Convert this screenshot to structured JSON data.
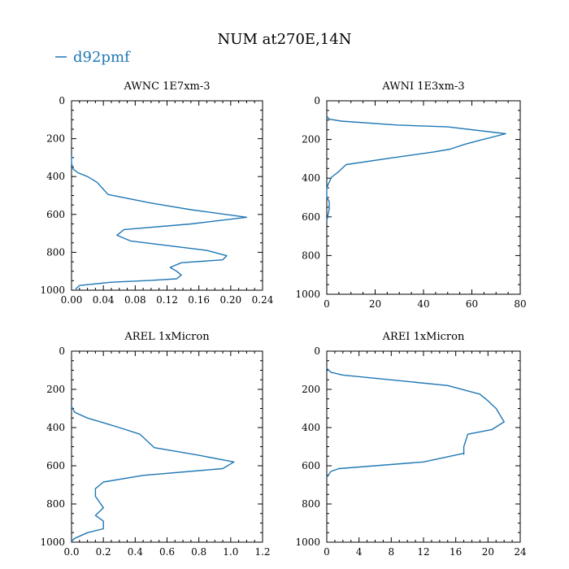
{
  "chart_data": {
    "title": "NUM at270E,14N",
    "legend": [
      {
        "name": "d92pmf",
        "color": "#1f77b4"
      }
    ],
    "panels": [
      {
        "type": "line",
        "title": "AWNC  1E7xm-3",
        "xlim": [
          0,
          0.24
        ],
        "ylim": [
          1000,
          0
        ],
        "xticks": [
          "0.00",
          "0.04",
          "0.08",
          "0.12",
          "0.16",
          "0.20",
          "0.24"
        ],
        "yticks": [
          "0",
          "200",
          "400",
          "600",
          "800",
          "1000"
        ],
        "series": [
          {
            "name": "d92pmf",
            "color": "#1f77b4",
            "x": [
              0,
              0,
              0.002,
              0.008,
              0.02,
              0.032,
              0.046,
              0.1,
              0.15,
              0.22,
              0.15,
              0.066,
              0.057,
              0.074,
              0.17,
              0.195,
              0.19,
              0.138,
              0.124,
              0.132,
              0.138,
              0.132,
              0.1,
              0.05,
              0.01,
              0.005
            ],
            "y": [
              290,
              330,
              360,
              380,
              400,
              430,
              495,
              540,
              575,
              615,
              650,
              680,
              710,
              740,
              790,
              818,
              840,
              855,
              880,
              900,
              920,
              940,
              948,
              958,
              975,
              995
            ]
          }
        ]
      },
      {
        "type": "line",
        "title": "AWNI  1E3xm-3",
        "xlim": [
          0,
          80
        ],
        "ylim": [
          1000,
          0
        ],
        "xticks": [
          "0",
          "20",
          "40",
          "60",
          "80"
        ],
        "yticks": [
          "0",
          "200",
          "400",
          "600",
          "800",
          "1000"
        ],
        "series": [
          {
            "name": "d92pmf",
            "color": "#1f77b4",
            "x": [
              0,
              1,
              6,
              29,
              50,
              74,
              63,
              57,
              51,
              44,
              27,
              8,
              5,
              2,
              1,
              0,
              0,
              1,
              1,
              0
            ],
            "y": [
              80,
              95,
              105,
              125,
              135,
              170,
              205,
              225,
              250,
              265,
              295,
              330,
              365,
              395,
              420,
              450,
              500,
              520,
              560,
              620
            ]
          }
        ]
      },
      {
        "type": "line",
        "title": "AREL  1xMicron",
        "xlim": [
          0,
          1.2
        ],
        "ylim": [
          1000,
          0
        ],
        "xticks": [
          "0.0",
          "0.2",
          "0.4",
          "0.6",
          "0.8",
          "1.0",
          "1.2"
        ],
        "yticks": [
          "0",
          "200",
          "400",
          "600",
          "800",
          "1000"
        ],
        "series": [
          {
            "name": "d92pmf",
            "color": "#1f77b4",
            "x": [
              0,
              0.02,
              0.1,
              0.2,
              0.3,
              0.43,
              0.52,
              0.8,
              1.02,
              0.95,
              0.45,
              0.2,
              0.15,
              0.15,
              0.2,
              0.15,
              0.2,
              0.2,
              0.1,
              0.02,
              0
            ],
            "y": [
              290,
              320,
              350,
              375,
              400,
              435,
              505,
              545,
              580,
              615,
              650,
              685,
              720,
              760,
              820,
              860,
              890,
              930,
              950,
              980,
              995
            ]
          }
        ]
      },
      {
        "type": "line",
        "title": "AREI  1xMicron",
        "xlim": [
          0,
          24
        ],
        "ylim": [
          1000,
          0
        ],
        "xticks": [
          "0",
          "4",
          "8",
          "12",
          "16",
          "20",
          "24"
        ],
        "yticks": [
          "0",
          "200",
          "400",
          "600",
          "800",
          "1000"
        ],
        "series": [
          {
            "name": "d92pmf",
            "color": "#1f77b4",
            "x": [
              0,
              0.5,
              2,
              8,
              15,
              19,
              20,
              21,
              22,
              20.5,
              17.5,
              17,
              17,
              17,
              12,
              1.5,
              0.5,
              0
            ],
            "y": [
              90,
              110,
              125,
              150,
              180,
              225,
              260,
              300,
              370,
              410,
              435,
              500,
              540,
              535,
              580,
              615,
              630,
              660
            ]
          }
        ]
      }
    ]
  }
}
